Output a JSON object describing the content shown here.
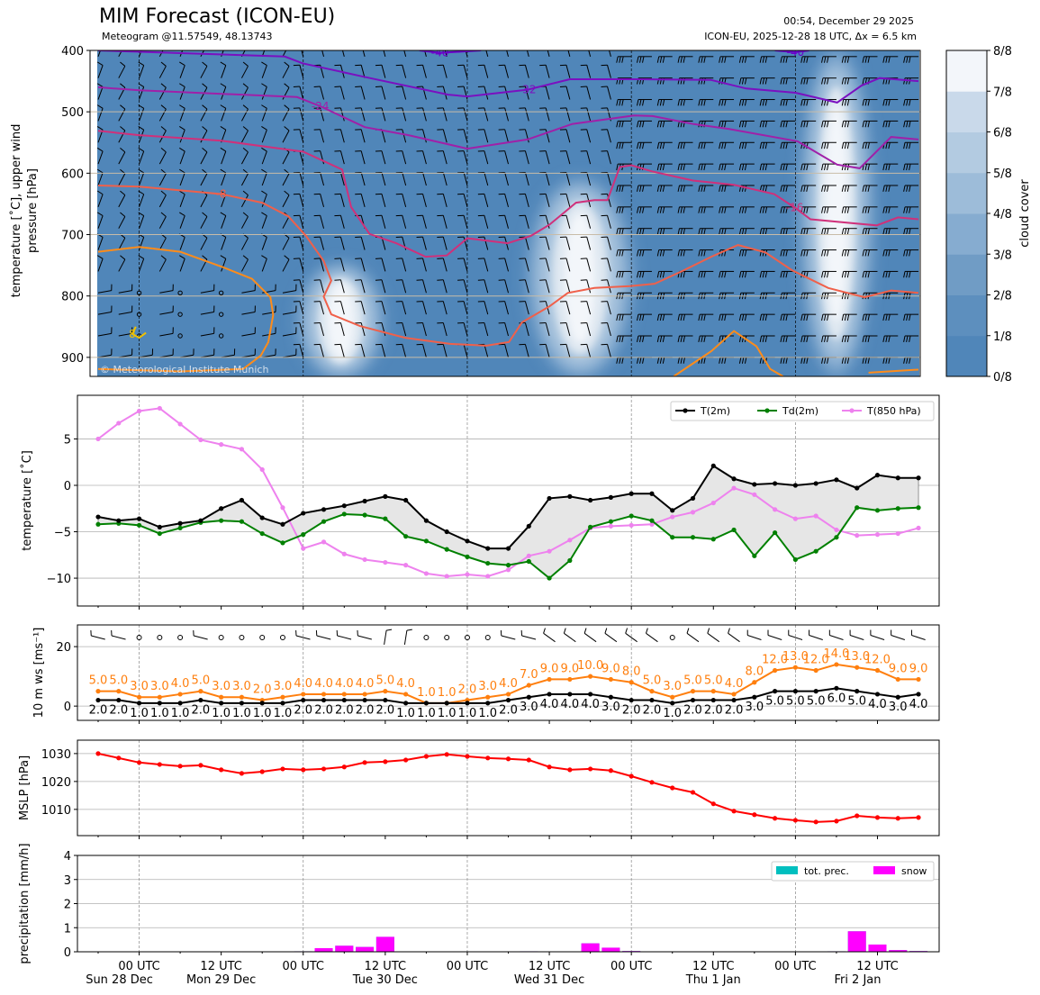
{
  "header": {
    "title": "MIM Forecast (ICON-EU)",
    "subtitle": "Meteogram @11.57549, 48.13743",
    "run_time": "00:54, December 29 2025",
    "model_info": "ICON-EU, 2025-12-28 18 UTC, Δx = 6.5 km"
  },
  "chart_data": {
    "type": "meteogram",
    "time_step_hours": 3,
    "hours": [
      0,
      3,
      6,
      9,
      12,
      15,
      18,
      21,
      24,
      27,
      30,
      33,
      36,
      39,
      42,
      45,
      48,
      51,
      54,
      57,
      60,
      63,
      66,
      69,
      72,
      75,
      78,
      81,
      84,
      87,
      90,
      93,
      96,
      99,
      102,
      105,
      108,
      111,
      114,
      117,
      120
    ],
    "x_ticks": [
      {
        "h": 6,
        "label": "00 UTC",
        "date": "Sun 28 Dec"
      },
      {
        "h": 18,
        "label": "12 UTC",
        "date": "Mon 29 Dec"
      },
      {
        "h": 30,
        "label": "00 UTC",
        "date": ""
      },
      {
        "h": 42,
        "label": "12 UTC",
        "date": "Tue 30 Dec"
      },
      {
        "h": 54,
        "label": "00 UTC",
        "date": ""
      },
      {
        "h": 66,
        "label": "12 UTC",
        "date": "Wed 31 Dec"
      },
      {
        "h": 78,
        "label": "00 UTC",
        "date": ""
      },
      {
        "h": 90,
        "label": "12 UTC",
        "date": "Thu 1 Jan"
      },
      {
        "h": 102,
        "label": "00 UTC",
        "date": ""
      },
      {
        "h": 114,
        "label": "12 UTC",
        "date": "Fri 2 Jan"
      }
    ],
    "upper": {
      "ylabel_line1": "temperature [˚C], upper wind",
      "ylabel_line2": "pressure [hPa]",
      "ylim": [
        931,
        400
      ],
      "yticks": [
        400,
        500,
        600,
        700,
        800,
        900
      ],
      "copyright": "© Meteorological Institute Munich",
      "colorbar_label": "cloud cover",
      "colorbar_ticks": [
        "0/8",
        "1/8",
        "2/8",
        "3/8",
        "4/8",
        "5/8",
        "6/8",
        "7/8",
        "8/8"
      ],
      "colorbar_colors": [
        "#5086b9",
        "#5d8fbe",
        "#709cc5",
        "#86acd0",
        "#9dbcd9",
        "#b3cbe1",
        "#c9d9ea",
        "#dfe8f1",
        "#f3f6fa"
      ],
      "cloud_cells": [
        {
          "h_center": 35.5,
          "h_halfwidth": 5.5,
          "p_top": 750,
          "p_bottom": 931,
          "max_cover": 8
        },
        {
          "h_center": 70.5,
          "h_halfwidth": 7,
          "p_top": 611,
          "p_bottom": 931,
          "max_cover": 8
        },
        {
          "h_center": 108,
          "h_halfwidth": 4.5,
          "p_top": 400,
          "p_bottom": 931,
          "max_cover": 8
        }
      ],
      "isotherms": [
        {
          "level": "-40",
          "color": "#6a00c8",
          "points": [
            [
              47,
              400
            ],
            [
              50,
              404
            ],
            [
              53,
              402
            ],
            [
              56,
              400
            ]
          ]
        },
        {
          "level": "-40",
          "color": "#6a00c8",
          "points": [
            [
              99,
              400
            ],
            [
              102,
              403
            ],
            [
              104,
              400
            ]
          ]
        },
        {
          "level": "-32",
          "color": "#7a10c0",
          "points": [
            [
              0,
              400
            ],
            [
              27.3,
              410
            ],
            [
              29.9,
              421
            ],
            [
              38.9,
              443
            ],
            [
              51.2,
              472
            ],
            [
              54,
              475
            ],
            [
              62.8,
              464
            ],
            [
              69,
              447
            ],
            [
              78.9,
              447
            ],
            [
              89.6,
              448
            ],
            [
              94.8,
              462
            ],
            [
              102,
              469
            ],
            [
              108.1,
              485
            ],
            [
              111.7,
              457
            ],
            [
              114.3,
              445
            ],
            [
              120,
              450
            ]
          ]
        },
        {
          "level": "-24",
          "color": "#a020a8",
          "points": [
            [
              0,
              460
            ],
            [
              6,
              465
            ],
            [
              29.1,
              476
            ],
            [
              32.5,
              491
            ],
            [
              39,
              525
            ],
            [
              45.4,
              538
            ],
            [
              54,
              560
            ],
            [
              62.8,
              545
            ],
            [
              69.3,
              520
            ],
            [
              78.4,
              506
            ],
            [
              81.1,
              507
            ],
            [
              87.1,
              520
            ],
            [
              92.3,
              528
            ],
            [
              102.3,
              548
            ],
            [
              108.1,
              586
            ],
            [
              111.4,
              592
            ],
            [
              116,
              541
            ],
            [
              120,
              545
            ]
          ]
        },
        {
          "level": "-16",
          "color": "#d0307a",
          "points": [
            [
              0,
              531
            ],
            [
              6,
              538
            ],
            [
              18,
              547
            ],
            [
              30,
              565
            ],
            [
              35.7,
              594
            ],
            [
              37,
              655
            ],
            [
              39.7,
              699
            ],
            [
              43.6,
              714
            ],
            [
              47.9,
              736
            ],
            [
              51,
              734
            ],
            [
              54,
              706
            ],
            [
              59.9,
              714
            ],
            [
              63.3,
              702
            ],
            [
              66,
              684
            ],
            [
              69.9,
              648
            ],
            [
              72.6,
              644
            ],
            [
              74.5,
              644
            ],
            [
              76.3,
              590
            ],
            [
              78,
              587
            ],
            [
              81,
              597
            ],
            [
              87,
              612
            ],
            [
              93,
              619
            ],
            [
              98.9,
              634
            ],
            [
              101.9,
              656
            ],
            [
              104.2,
              675
            ],
            [
              110.9,
              682
            ],
            [
              113.9,
              685
            ],
            [
              117,
              672
            ],
            [
              120,
              675
            ]
          ]
        },
        {
          "level": "-8",
          "color": "#f0604a",
          "points": [
            [
              0,
              620
            ],
            [
              6,
              622
            ],
            [
              18,
              634
            ],
            [
              24,
              648
            ],
            [
              27.8,
              670
            ],
            [
              30.4,
              702
            ],
            [
              33,
              743
            ],
            [
              34.1,
              775
            ],
            [
              33,
              801
            ],
            [
              34.1,
              830
            ],
            [
              38.3,
              849
            ],
            [
              44.9,
              868
            ],
            [
              51.5,
              878
            ],
            [
              56.8,
              881
            ],
            [
              60.1,
              875
            ],
            [
              62,
              843
            ],
            [
              66,
              817
            ],
            [
              68.7,
              795
            ],
            [
              72.6,
              787
            ],
            [
              77.8,
              784
            ],
            [
              81.4,
              780
            ],
            [
              85.7,
              758
            ],
            [
              89.7,
              736
            ],
            [
              93.6,
              717
            ],
            [
              97.6,
              729
            ],
            [
              101.5,
              758
            ],
            [
              106.8,
              787
            ],
            [
              112.1,
              802
            ],
            [
              116,
              791
            ],
            [
              120,
              795
            ]
          ]
        },
        {
          "level": "0",
          "color": "#ff8c1a",
          "points": [
            [
              0,
              728
            ],
            [
              6,
              720
            ],
            [
              12,
              728
            ],
            [
              18,
              752
            ],
            [
              22.5,
              772
            ],
            [
              25.2,
              802
            ],
            [
              25.6,
              831
            ],
            [
              24.9,
              875
            ],
            [
              23.8,
              897
            ],
            [
              21.2,
              919
            ],
            [
              12,
              923
            ],
            [
              0,
              919
            ]
          ]
        },
        {
          "level": "0",
          "color": "#ff8c1a",
          "points": [
            [
              84.2,
              931
            ],
            [
              89.7,
              890
            ],
            [
              93,
              857
            ],
            [
              96.3,
              882
            ],
            [
              98.3,
              919
            ],
            [
              100.2,
              931
            ]
          ]
        },
        {
          "level": "0",
          "color": "#ff8c1a",
          "points": [
            [
              112.7,
              925
            ],
            [
              120,
              920
            ]
          ]
        },
        {
          "level": "8",
          "color": "#f0c000",
          "points": [
            [
              5.5,
              850
            ],
            [
              5,
              862
            ],
            [
              6,
              868
            ],
            [
              7,
              860
            ]
          ]
        }
      ]
    },
    "temperature": {
      "ylabel": "temperature [˚C]",
      "ylim": [
        -13,
        9.7
      ],
      "yticks": [
        5,
        0,
        -5,
        -10
      ],
      "legend_position": "top-right",
      "series": [
        {
          "name": "T(2m)",
          "color": "#000000",
          "values": [
            -3.4,
            -3.8,
            -3.6,
            -4.5,
            -4.1,
            -3.8,
            -2.5,
            -1.6,
            -3.5,
            -4.2,
            -3.0,
            -2.6,
            -2.2,
            -1.7,
            -1.2,
            -1.6,
            -3.8,
            -5.0,
            -6.0,
            -6.8,
            -6.8,
            -4.4,
            -1.4,
            -1.2,
            -1.6,
            -1.3,
            -0.9,
            -0.9,
            -2.7,
            -1.4,
            2.1,
            0.7,
            0.1,
            0.2,
            0.0,
            0.2,
            0.6,
            -0.3,
            1.1,
            0.8,
            0.8
          ]
        },
        {
          "name": "Td(2m)",
          "color": "#008000",
          "values": [
            -4.2,
            -4.1,
            -4.3,
            -5.2,
            -4.6,
            -4.0,
            -3.8,
            -3.9,
            -5.2,
            -6.2,
            -5.3,
            -3.9,
            -3.1,
            -3.2,
            -3.6,
            -5.5,
            -6.0,
            -6.9,
            -7.7,
            -8.4,
            -8.6,
            -8.2,
            -10.0,
            -8.1,
            -4.5,
            -3.9,
            -3.3,
            -3.8,
            -5.6,
            -5.6,
            -5.8,
            -4.8,
            -7.6,
            -5.1,
            -8.0,
            -7.1,
            -5.6,
            -2.4,
            -2.7,
            -2.5,
            -2.4
          ]
        },
        {
          "name": "T(850 hPa)",
          "color": "#ee82ee",
          "values": [
            5.0,
            6.7,
            8.0,
            8.3,
            6.6,
            4.9,
            4.4,
            3.9,
            1.7,
            -2.4,
            -6.8,
            -6.1,
            -7.4,
            -8.0,
            -8.3,
            -8.6,
            -9.5,
            -9.8,
            -9.6,
            -9.8,
            -9.1,
            -7.6,
            -7.1,
            -5.9,
            -4.6,
            -4.4,
            -4.3,
            -4.2,
            -3.4,
            -2.9,
            -1.9,
            -0.3,
            -1.0,
            -2.6,
            -3.6,
            -3.3,
            -4.8,
            -5.4,
            -5.3,
            -5.2,
            -4.6
          ]
        }
      ]
    },
    "wind": {
      "ylabel": "10 m ws [ms⁻¹]",
      "ylim": [
        -4.8,
        27.3
      ],
      "yticks": [
        0,
        20
      ],
      "series": [
        {
          "name": "gusts",
          "color": "#ff7f0e",
          "values": [
            5,
            5,
            3,
            3,
            4,
            5,
            3,
            3,
            2,
            3,
            4,
            4,
            4,
            4,
            5,
            4,
            1,
            1,
            2,
            3,
            4,
            7,
            9,
            9,
            10,
            9,
            8,
            5,
            3,
            5,
            5,
            4,
            8,
            12,
            13,
            12,
            14,
            13,
            12,
            9,
            9
          ]
        },
        {
          "name": "mean",
          "color": "#000000",
          "values": [
            2,
            2,
            1,
            1,
            1,
            2,
            1,
            1,
            1,
            1,
            2,
            2,
            2,
            2,
            2,
            1,
            1,
            1,
            1,
            1,
            2,
            3,
            4,
            4,
            4,
            3,
            2,
            2,
            1,
            2,
            2,
            2,
            3,
            5,
            5,
            5,
            6,
            5,
            4,
            3,
            4
          ]
        }
      ]
    },
    "mslp": {
      "ylabel": "MSLP [hPa]",
      "ylim": [
        1000.6,
        1034.8
      ],
      "yticks": [
        1030,
        1020,
        1010
      ],
      "color": "#ff0000",
      "values": [
        1030.0,
        1028.4,
        1026.8,
        1026.1,
        1025.5,
        1025.8,
        1024.2,
        1022.9,
        1023.5,
        1024.5,
        1024.2,
        1024.5,
        1025.2,
        1026.8,
        1027.1,
        1027.7,
        1029.0,
        1029.7,
        1029.0,
        1028.4,
        1028.1,
        1027.7,
        1025.2,
        1024.2,
        1024.5,
        1023.9,
        1021.9,
        1019.7,
        1017.7,
        1016.1,
        1012.0,
        1009.4,
        1008.1,
        1006.8,
        1006.1,
        1005.5,
        1005.8,
        1007.7,
        1007.1,
        1006.8,
        1007.1
      ]
    },
    "precip": {
      "ylabel": "precipitation [mm/h]",
      "ylim": [
        0,
        4
      ],
      "yticks": [
        4,
        3,
        2,
        1,
        0
      ],
      "legend_position": "top-right",
      "series": [
        {
          "name": "tot. prec.",
          "color": "#00bfbf",
          "values": [
            0,
            0,
            0,
            0,
            0,
            0,
            0,
            0,
            0,
            0,
            0.02,
            0.15,
            0.25,
            0.2,
            0.62,
            0,
            0,
            0,
            0,
            0,
            0,
            0.02,
            0,
            0,
            0.35,
            0.17,
            0.03,
            0,
            0,
            0,
            0,
            0,
            0,
            0,
            0,
            0,
            0.02,
            0.85,
            0.3,
            0.07,
            0.03
          ]
        },
        {
          "name": "snow",
          "color": "#ff00ff",
          "values": [
            0,
            0,
            0,
            0,
            0,
            0,
            0,
            0,
            0,
            0,
            0.02,
            0.15,
            0.25,
            0.2,
            0.62,
            0,
            0,
            0,
            0,
            0,
            0,
            0.02,
            0,
            0,
            0.35,
            0.17,
            0.03,
            0,
            0,
            0,
            0,
            0,
            0,
            0,
            0,
            0,
            0.02,
            0.85,
            0.3,
            0.07,
            0.03
          ]
        }
      ]
    }
  }
}
